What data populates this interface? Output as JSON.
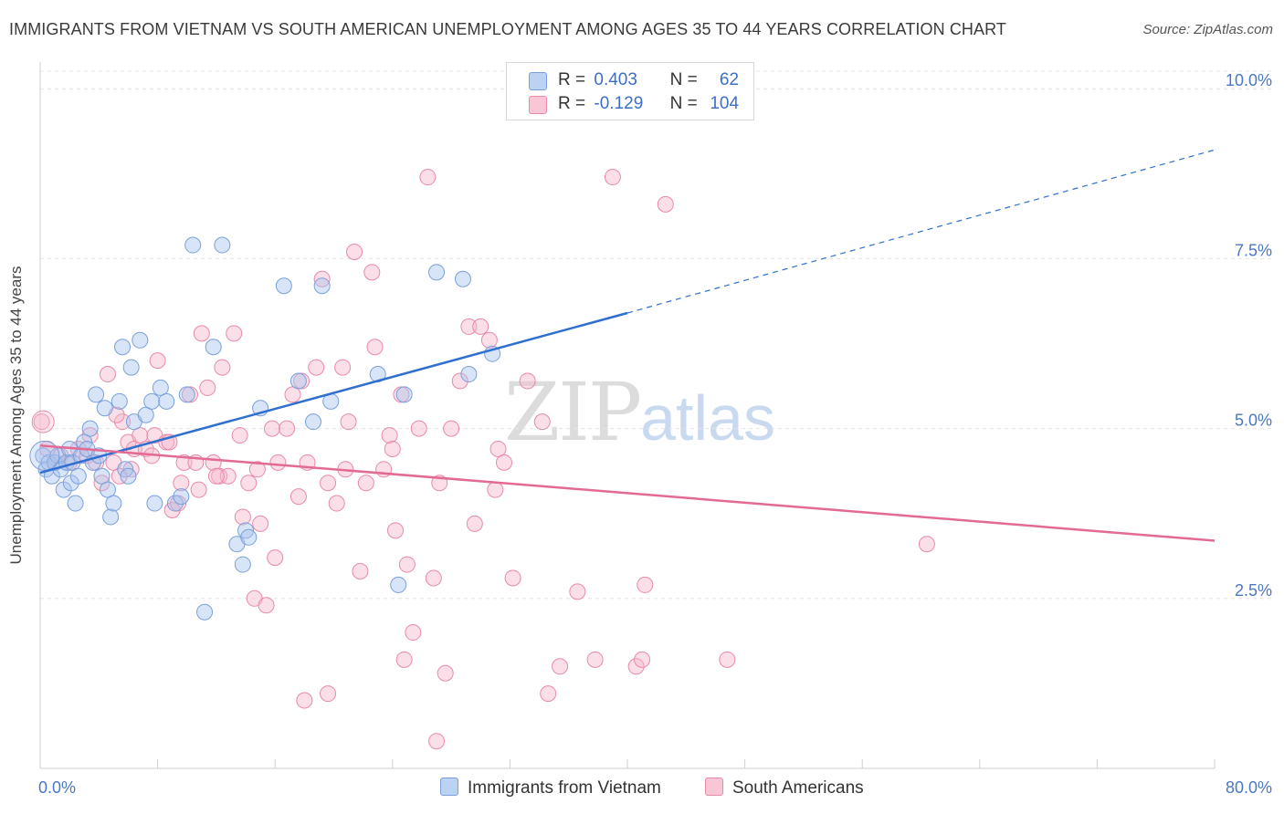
{
  "title": "IMMIGRANTS FROM VIETNAM VS SOUTH AMERICAN UNEMPLOYMENT AMONG AGES 35 TO 44 YEARS CORRELATION CHART",
  "source": "Source: ZipAtlas.com",
  "watermark": {
    "zip": "ZIP",
    "atlas": "atlas"
  },
  "legend": {
    "r_label": "R =",
    "n_label": "N =",
    "rows": [
      {
        "r": "0.403",
        "n": "62"
      },
      {
        "r": "-0.129",
        "n": "104"
      }
    ]
  },
  "chart_data": {
    "type": "scatter",
    "title": "IMMIGRANTS FROM VIETNAM VS SOUTH AMERICAN UNEMPLOYMENT AMONG AGES 35 TO 44 YEARS CORRELATION CHART",
    "xlabel": "",
    "ylabel": "Unemployment Among Ages 35 to 44 years",
    "xlim": [
      0,
      80
    ],
    "ylim": [
      0,
      10.5
    ],
    "x_tick_labels": [
      "0.0%",
      "80.0%"
    ],
    "y_ticks": [
      2.5,
      5.0,
      7.5,
      10.0
    ],
    "y_tick_labels": [
      "2.5%",
      "5.0%",
      "7.5%",
      "10.0%"
    ],
    "grid": "horizontal dashed",
    "series": [
      {
        "name": "Immigrants from Vietnam",
        "color": "#a9c4ee",
        "stroke": "#7aa0db",
        "points": [
          [
            0.2,
            4.6
          ],
          [
            0.4,
            4.4
          ],
          [
            0.6,
            4.5
          ],
          [
            0.8,
            4.3
          ],
          [
            1.0,
            4.5
          ],
          [
            1.2,
            4.6
          ],
          [
            1.4,
            4.4
          ],
          [
            1.6,
            4.1
          ],
          [
            1.8,
            4.5
          ],
          [
            2.0,
            4.7
          ],
          [
            2.1,
            4.2
          ],
          [
            2.2,
            4.5
          ],
          [
            2.4,
            3.9
          ],
          [
            2.6,
            4.3
          ],
          [
            2.8,
            4.6
          ],
          [
            3.0,
            4.8
          ],
          [
            3.2,
            4.7
          ],
          [
            3.4,
            5.0
          ],
          [
            3.6,
            4.5
          ],
          [
            3.8,
            5.5
          ],
          [
            4.0,
            4.6
          ],
          [
            4.2,
            4.3
          ],
          [
            4.4,
            5.3
          ],
          [
            4.6,
            4.1
          ],
          [
            4.8,
            3.7
          ],
          [
            5.0,
            3.9
          ],
          [
            5.4,
            5.4
          ],
          [
            5.6,
            6.2
          ],
          [
            5.8,
            4.4
          ],
          [
            6.0,
            4.3
          ],
          [
            6.2,
            5.9
          ],
          [
            6.4,
            5.1
          ],
          [
            6.8,
            6.3
          ],
          [
            7.2,
            5.2
          ],
          [
            7.6,
            5.4
          ],
          [
            7.8,
            3.9
          ],
          [
            8.2,
            5.6
          ],
          [
            8.6,
            5.4
          ],
          [
            9.2,
            3.9
          ],
          [
            9.6,
            4.0
          ],
          [
            10.0,
            5.5
          ],
          [
            10.4,
            7.7
          ],
          [
            11.2,
            2.3
          ],
          [
            11.8,
            6.2
          ],
          [
            12.4,
            7.7
          ],
          [
            13.4,
            3.3
          ],
          [
            13.8,
            3.0
          ],
          [
            14.0,
            3.5
          ],
          [
            14.2,
            3.4
          ],
          [
            15.0,
            5.3
          ],
          [
            16.6,
            7.1
          ],
          [
            17.6,
            5.7
          ],
          [
            18.6,
            5.1
          ],
          [
            19.2,
            7.1
          ],
          [
            19.8,
            5.4
          ],
          [
            23.0,
            5.8
          ],
          [
            24.4,
            2.7
          ],
          [
            24.8,
            5.5
          ],
          [
            27.0,
            7.3
          ],
          [
            28.8,
            7.2
          ],
          [
            29.2,
            5.8
          ],
          [
            30.8,
            6.1
          ]
        ],
        "trend": {
          "x0": 0,
          "y0": 4.35,
          "x1": 40,
          "y1": 6.7,
          "dash_to_x": 80,
          "dash_to_y": 9.1
        }
      },
      {
        "name": "South Americans",
        "color": "#f6b9cd",
        "stroke": "#e88aaa",
        "points": [
          [
            0.1,
            5.1
          ],
          [
            0.5,
            4.7
          ],
          [
            1.0,
            4.5
          ],
          [
            1.4,
            4.6
          ],
          [
            2.0,
            4.5
          ],
          [
            2.6,
            4.7
          ],
          [
            3.2,
            4.6
          ],
          [
            3.8,
            4.5
          ],
          [
            4.2,
            4.2
          ],
          [
            4.6,
            5.8
          ],
          [
            5.0,
            4.5
          ],
          [
            5.4,
            4.3
          ],
          [
            5.6,
            5.1
          ],
          [
            6.0,
            4.8
          ],
          [
            6.4,
            4.7
          ],
          [
            6.8,
            4.9
          ],
          [
            7.2,
            4.7
          ],
          [
            7.6,
            4.6
          ],
          [
            7.8,
            4.9
          ],
          [
            8.0,
            6.0
          ],
          [
            8.6,
            4.8
          ],
          [
            9.0,
            3.8
          ],
          [
            9.4,
            3.9
          ],
          [
            9.6,
            4.2
          ],
          [
            9.8,
            4.5
          ],
          [
            10.2,
            5.5
          ],
          [
            10.6,
            4.5
          ],
          [
            11.0,
            6.4
          ],
          [
            11.4,
            5.6
          ],
          [
            11.8,
            4.5
          ],
          [
            12.2,
            4.3
          ],
          [
            12.4,
            5.9
          ],
          [
            12.8,
            4.3
          ],
          [
            13.2,
            6.4
          ],
          [
            13.6,
            4.9
          ],
          [
            13.8,
            3.7
          ],
          [
            14.2,
            4.2
          ],
          [
            14.6,
            2.5
          ],
          [
            15.0,
            3.6
          ],
          [
            15.4,
            2.4
          ],
          [
            15.8,
            5.0
          ],
          [
            16.0,
            3.1
          ],
          [
            16.2,
            4.5
          ],
          [
            16.8,
            5.0
          ],
          [
            17.2,
            5.5
          ],
          [
            17.6,
            4.0
          ],
          [
            17.8,
            5.7
          ],
          [
            18.2,
            4.5
          ],
          [
            18.8,
            5.9
          ],
          [
            19.2,
            7.2
          ],
          [
            19.6,
            4.2
          ],
          [
            20.2,
            3.9
          ],
          [
            20.6,
            5.9
          ],
          [
            21.0,
            5.1
          ],
          [
            21.4,
            7.6
          ],
          [
            21.8,
            2.9
          ],
          [
            22.2,
            4.2
          ],
          [
            22.6,
            7.3
          ],
          [
            22.8,
            6.2
          ],
          [
            23.4,
            4.4
          ],
          [
            23.8,
            4.9
          ],
          [
            24.2,
            3.5
          ],
          [
            24.6,
            5.5
          ],
          [
            24.8,
            1.6
          ],
          [
            25.0,
            3.0
          ],
          [
            25.4,
            2.0
          ],
          [
            25.8,
            5.0
          ],
          [
            26.4,
            8.7
          ],
          [
            26.8,
            2.8
          ],
          [
            27.2,
            4.2
          ],
          [
            27.6,
            1.4
          ],
          [
            28.0,
            5.0
          ],
          [
            28.6,
            5.7
          ],
          [
            29.2,
            6.5
          ],
          [
            29.6,
            3.6
          ],
          [
            30.0,
            6.5
          ],
          [
            30.6,
            6.3
          ],
          [
            31.0,
            4.1
          ],
          [
            31.6,
            4.5
          ],
          [
            32.2,
            2.8
          ],
          [
            33.2,
            5.7
          ],
          [
            34.2,
            5.1
          ],
          [
            34.6,
            1.1
          ],
          [
            35.4,
            1.5
          ],
          [
            36.6,
            2.6
          ],
          [
            37.8,
            1.6
          ],
          [
            39.0,
            8.7
          ],
          [
            40.6,
            1.5
          ],
          [
            41.0,
            1.6
          ],
          [
            41.2,
            2.7
          ],
          [
            42.6,
            8.3
          ],
          [
            18.0,
            1.0
          ],
          [
            19.6,
            1.1
          ],
          [
            27.0,
            0.4
          ],
          [
            46.8,
            1.6
          ],
          [
            60.4,
            3.3
          ],
          [
            12.0,
            4.3
          ],
          [
            8.8,
            4.8
          ],
          [
            3.4,
            4.9
          ],
          [
            6.2,
            4.4
          ],
          [
            10.8,
            4.1
          ],
          [
            14.8,
            4.4
          ],
          [
            20.8,
            4.4
          ],
          [
            24.0,
            4.7
          ],
          [
            31.2,
            4.7
          ],
          [
            5.2,
            5.2
          ]
        ],
        "trend": {
          "x0": 0,
          "y0": 4.75,
          "x1": 80,
          "y1": 3.35
        }
      }
    ]
  }
}
